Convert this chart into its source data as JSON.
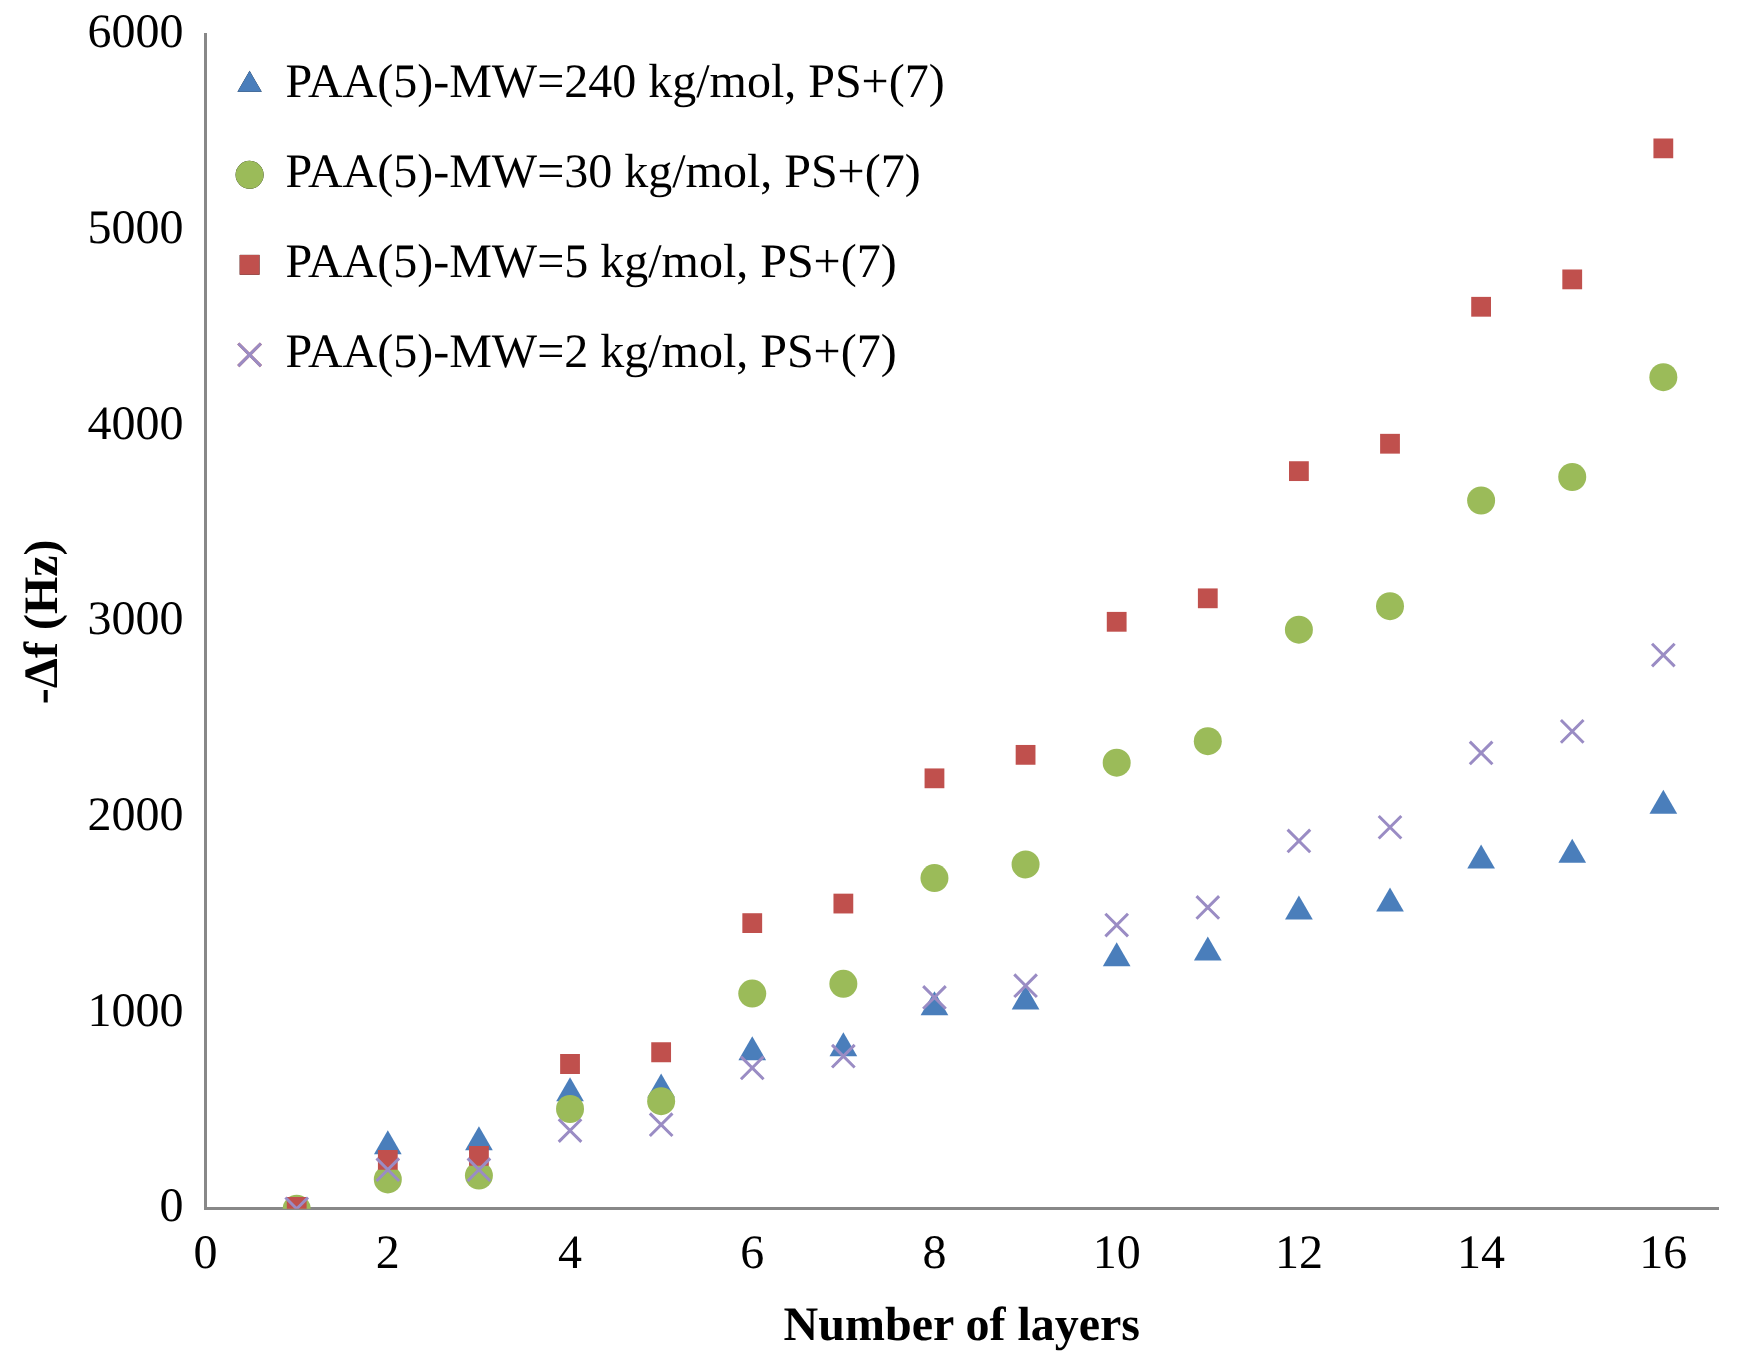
{
  "chart_data": {
    "type": "scatter",
    "xlabel": "Number of layers",
    "ylabel": "-Δf (Hz)",
    "x": [
      1,
      2,
      3,
      4,
      5,
      6,
      7,
      8,
      9,
      10,
      11,
      12,
      13,
      14,
      15,
      16
    ],
    "series": [
      {
        "name": "PAA(5)-MW=240 kg/mol, PS+(7)",
        "color": "#4a7ebb",
        "marker": "triangle",
        "values": [
          null,
          320,
          340,
          590,
          610,
          800,
          820,
          1030,
          1060,
          1280,
          1310,
          1520,
          1560,
          1780,
          1810,
          2060
        ]
      },
      {
        "name": "PAA(5)-MW=30 kg/mol, PS+(7)",
        "color": "#9bbb59",
        "marker": "circle",
        "values": [
          0,
          150,
          170,
          510,
          550,
          1100,
          1150,
          1690,
          1760,
          2280,
          2390,
          2960,
          3080,
          3620,
          3740,
          4250
        ]
      },
      {
        "name": "PAA(5)-MW=5 kg/mol, PS+(7)",
        "color": "#c0504d",
        "marker": "square",
        "values": [
          10,
          250,
          270,
          740,
          800,
          1460,
          1560,
          2200,
          2320,
          3000,
          3120,
          3770,
          3910,
          4610,
          4750,
          5420
        ]
      },
      {
        "name": "PAA(5)-MW=2 kg/mol, PS+(7)",
        "color": "#9a8cc4",
        "marker": "cross",
        "values": [
          0,
          200,
          200,
          400,
          430,
          720,
          780,
          1080,
          1140,
          1450,
          1540,
          1880,
          1950,
          2330,
          2440,
          2830
        ]
      }
    ],
    "xlim": [
      0,
      16.6
    ],
    "xticks": [
      0,
      2,
      4,
      6,
      8,
      10,
      12,
      14,
      16
    ],
    "ylim": [
      0,
      6000
    ],
    "yticks": [
      0,
      1000,
      2000,
      3000,
      4000,
      5000,
      6000
    ],
    "grid": false,
    "legend": "top left"
  }
}
